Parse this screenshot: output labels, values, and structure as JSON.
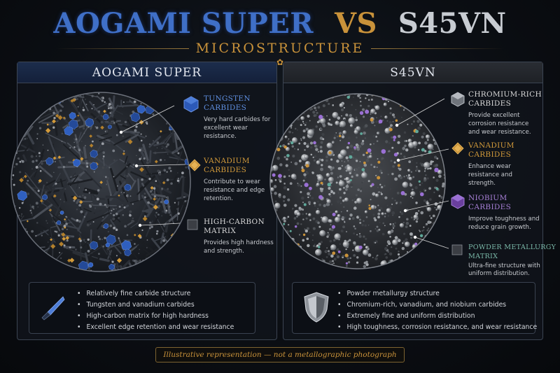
{
  "header": {
    "title_a": "AOGAMI SUPER",
    "title_vs": "VS",
    "title_b": "S45VN",
    "subtitle": "MICROSTRUCTURE"
  },
  "left_panel": {
    "heading": "AOGAMI SUPER",
    "callouts": [
      {
        "title_line1": "TUNGSTEN",
        "title_line2": "CARBIDES",
        "desc": "Very hard carbides for excellent wear resistance.",
        "color": "#5f8fe0",
        "icon": "blue-hexagon-icon"
      },
      {
        "title_line1": "VANADIUM",
        "title_line2": "CARBIDES",
        "desc": "Contribute to wear resistance and edge retention.",
        "color": "#d29a3a",
        "icon": "gold-diamond-icon"
      },
      {
        "title_line1": "HIGH-CARBON",
        "title_line2": "MATRIX",
        "desc": "Provides high hardness and strength.",
        "color": "#d8d8d8",
        "icon": "gray-square-icon"
      }
    ],
    "bullets": [
      "Relatively fine carbide structure",
      "Tungsten and vanadium carbides",
      "High-carbon matrix for high hardness",
      "Excellent edge retention and wear resistance"
    ],
    "badge_icon": "knife-icon"
  },
  "right_panel": {
    "heading": "S45VN",
    "callouts": [
      {
        "title_line1": "CHROMIUM-RICH",
        "title_line2": "CARBIDES",
        "desc": "Provide excellent corrosion resistance and wear resistance.",
        "color": "#d8d8d8",
        "icon": "silver-hexagon-icon"
      },
      {
        "title_line1": "VANADIUM",
        "title_line2": "CARBIDES",
        "desc": "Enhance wear resistance and strength.",
        "color": "#d29a3a",
        "icon": "gold-diamond-icon"
      },
      {
        "title_line1": "NIOBIUM",
        "title_line2": "CARBIDES",
        "desc": "Improve toughness and reduce grain growth.",
        "color": "#a77fd6",
        "icon": "purple-hexagon-icon"
      },
      {
        "title_line1": "POWDER METALLURGY",
        "title_line2": "MATRIX",
        "desc": "Ultra-fine structure with uniform distribution.",
        "color": "#7ab8a8",
        "icon": "gray-square-icon"
      }
    ],
    "bullets": [
      "Powder metallurgy structure",
      "Chromium-rich, vanadium, and niobium carbides",
      "Extremely fine and uniform distribution",
      "High toughness, corrosion resistance, and wear resistance"
    ],
    "badge_icon": "shield-icon"
  },
  "footer": {
    "note": "Illustrative representation — not a metallographic photograph"
  },
  "colors": {
    "accent_gold": "#c9923a",
    "aogami_blue": "#3f6fc7",
    "s45vn_silver": "#c8ccd2",
    "niobium_purple": "#a77fd6"
  }
}
